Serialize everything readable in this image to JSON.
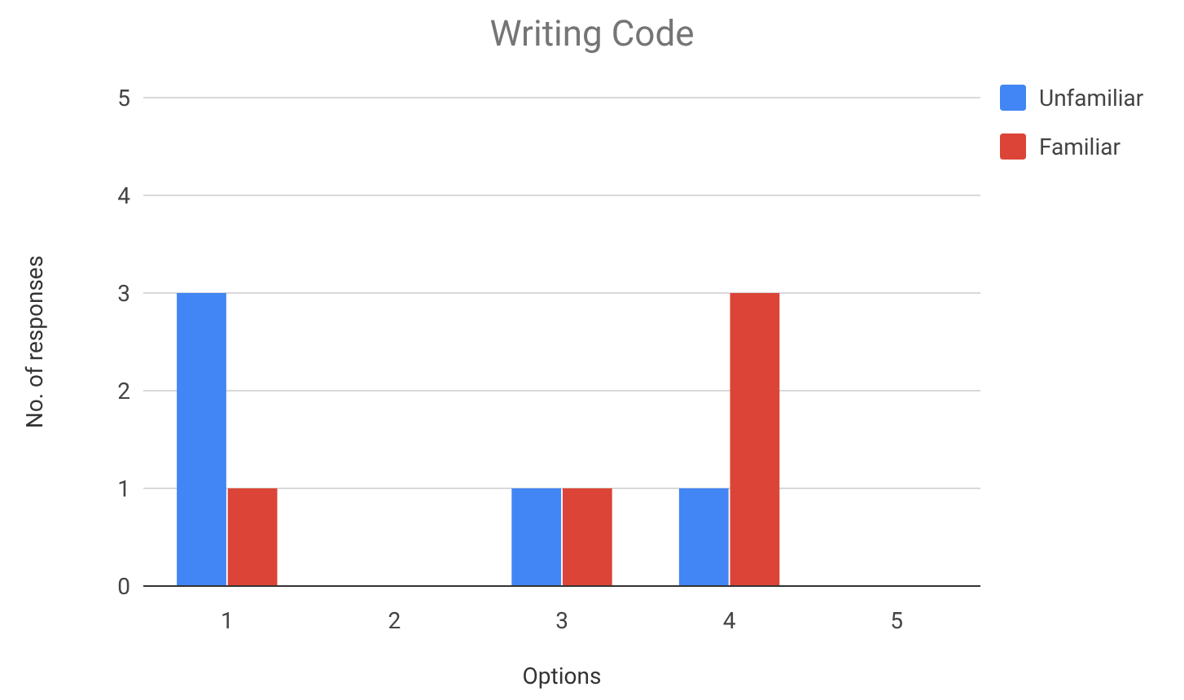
{
  "chart_data": {
    "type": "bar",
    "title": "Writing Code",
    "xlabel": "Options",
    "ylabel": "No. of responses",
    "categories": [
      "1",
      "2",
      "3",
      "4",
      "5"
    ],
    "series": [
      {
        "name": "Unfamiliar",
        "color": "#4285f4",
        "values": [
          3,
          0,
          1,
          1,
          0
        ]
      },
      {
        "name": "Familiar",
        "color": "#db4437",
        "values": [
          1,
          0,
          1,
          3,
          0
        ]
      }
    ],
    "ylim": [
      0,
      5
    ],
    "yticks": [
      0,
      1,
      2,
      3,
      4,
      5
    ],
    "grid": "y",
    "legend": "top right"
  }
}
